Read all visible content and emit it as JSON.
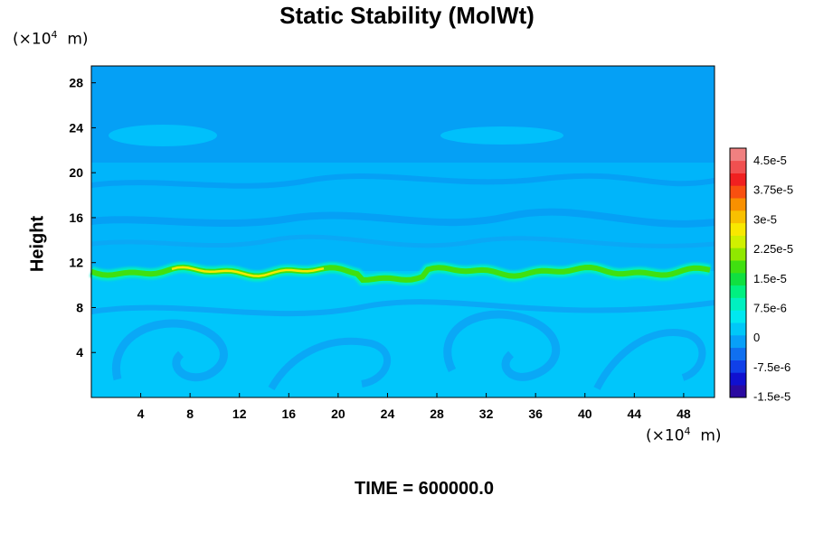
{
  "chart_data": {
    "type": "heatmap",
    "title": "Static Stability (MolWt)",
    "ylabel": "Height",
    "y_unit": "m",
    "x_unit": "m",
    "unit_exponent": "4",
    "unit_prefix": "(×10",
    "xlim": [
      0,
      50.5
    ],
    "ylim": [
      0,
      29.5
    ],
    "x_ticks": [
      4,
      8,
      12,
      16,
      20,
      24,
      28,
      32,
      36,
      40,
      44,
      48
    ],
    "y_ticks": [
      4,
      8,
      12,
      16,
      20,
      24,
      28
    ],
    "colorbar": {
      "labels": [
        "4.5e-5",
        "3.75e-5",
        "3e-5",
        "2.25e-5",
        "1.5e-5",
        "7.5e-6",
        "0",
        "-7.5e-6",
        "-1.5e-5"
      ],
      "colors": [
        "#2a0aa0",
        "#1010d0",
        "#1040e8",
        "#1070f0",
        "#08a0f8",
        "#00c8f8",
        "#00e8f0",
        "#00f0c0",
        "#00f080",
        "#10e040",
        "#40e010",
        "#90e800",
        "#d0f000",
        "#f8e800",
        "#f8c000",
        "#f89000",
        "#f85010",
        "#f02020",
        "#f05050",
        "#f08080"
      ]
    },
    "background_value_color": "#05a0f5",
    "lower_region_color": "#00c6fb",
    "band_height": 11.2,
    "grid": false
  },
  "footer": "TIME = 600000.0"
}
